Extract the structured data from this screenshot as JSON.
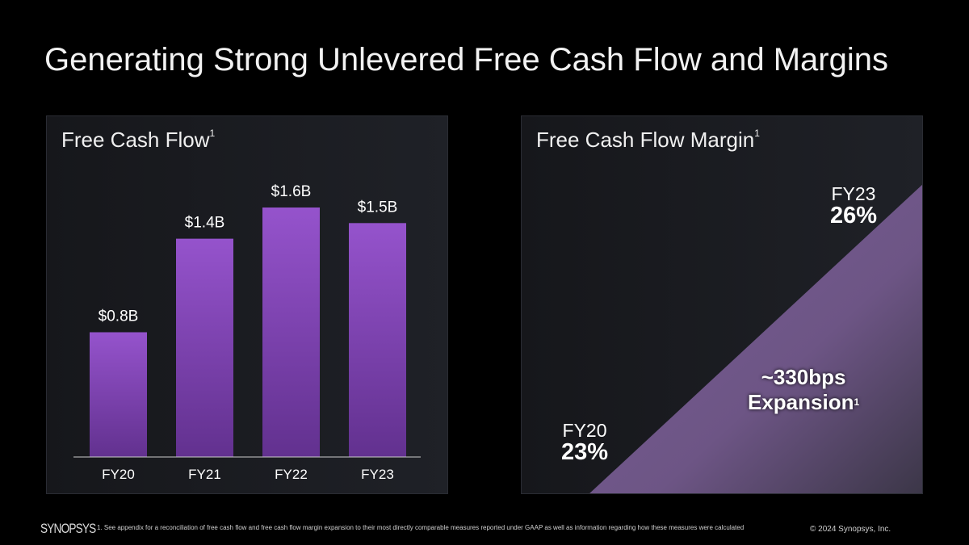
{
  "title": "Generating Strong Unlevered Free Cash Flow and Margins",
  "left_panel": {
    "title": "Free Cash Flow",
    "sup": "1"
  },
  "right_panel": {
    "title": "Free Cash Flow Margin",
    "sup": "1",
    "start": {
      "label": "FY20",
      "value": "23%"
    },
    "end": {
      "label": "FY23",
      "value": "26%"
    },
    "expansion": "~330bps",
    "expansion_label": "Expansion",
    "expansion_sup": "1"
  },
  "chart_data": {
    "type": "bar",
    "title": "Free Cash Flow",
    "categories": [
      "FY20",
      "FY21",
      "FY22",
      "FY23"
    ],
    "values": [
      0.8,
      1.4,
      1.6,
      1.5
    ],
    "labels": [
      "$0.8B",
      "$1.4B",
      "$1.6B",
      "$1.5B"
    ],
    "ylabel": "$B",
    "ylim": [
      0,
      1.6
    ],
    "bar_color_top": "#9553cc",
    "bar_color_bottom": "#62318f"
  },
  "footer": {
    "note": "1. See appendix for a reconciliation of free cash flow and free cash flow margin expansion to their most directly comparable measures reported under GAAP as well as information regarding how these measures were calculated",
    "copyright": "© 2024 Synopsys, Inc.",
    "logo": "synopsys"
  }
}
